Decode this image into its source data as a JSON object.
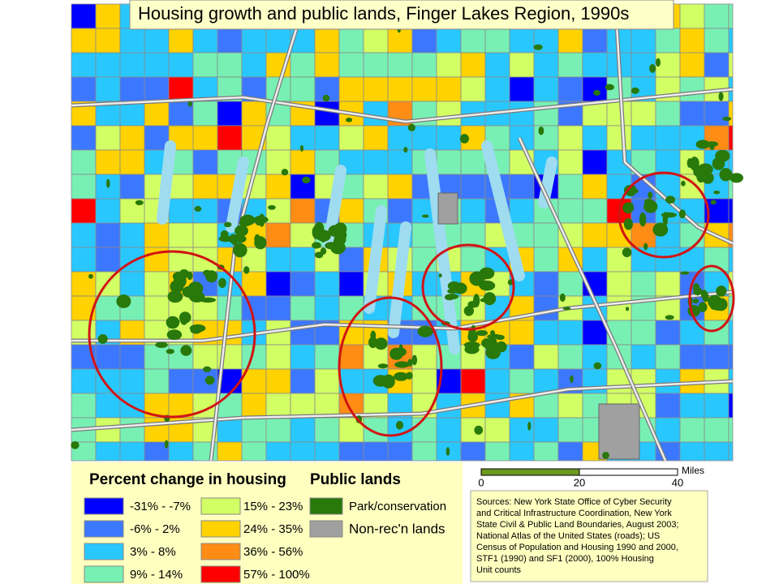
{
  "title": "Housing growth and public lands, Finger Lakes Region, 1990s",
  "legend": {
    "housing_title": "Percent change in housing",
    "housing_classes": [
      {
        "label": "-31% - -7%",
        "color": "#0000ff"
      },
      {
        "label": "-6% - 2%",
        "color": "#3c78ff"
      },
      {
        "label": "3% - 8%",
        "color": "#28c8ff"
      },
      {
        "label": "9% - 14%",
        "color": "#78f0b4"
      },
      {
        "label": "15% - 23%",
        "color": "#d2ff64"
      },
      {
        "label": "24% - 35%",
        "color": "#ffd200"
      },
      {
        "label": "36% - 56%",
        "color": "#ff8c14"
      },
      {
        "label": "57% - 100%",
        "color": "#ff0000"
      }
    ],
    "public_title": "Public lands",
    "public_classes": [
      {
        "label": "Park/conservation",
        "color": "#28780a"
      },
      {
        "label": "Non-rec'n lands",
        "color": "#a0a0a0"
      }
    ]
  },
  "scale_bar": {
    "unit": "Miles",
    "labels": [
      "0",
      "20",
      "40"
    ]
  },
  "sources": [
    "Sources: New York State Office of Cyber Security",
    "and Critical Infrastructure Coordination, New York",
    "State Civil & Public Land Boundaries, August 2003;",
    "National Atlas of the United States (roads); US",
    "Census of Population and Housing 1990 and 2000,",
    "STF1 (1990) and SF1 (2000), 100% Housing",
    "Unit counts"
  ]
}
